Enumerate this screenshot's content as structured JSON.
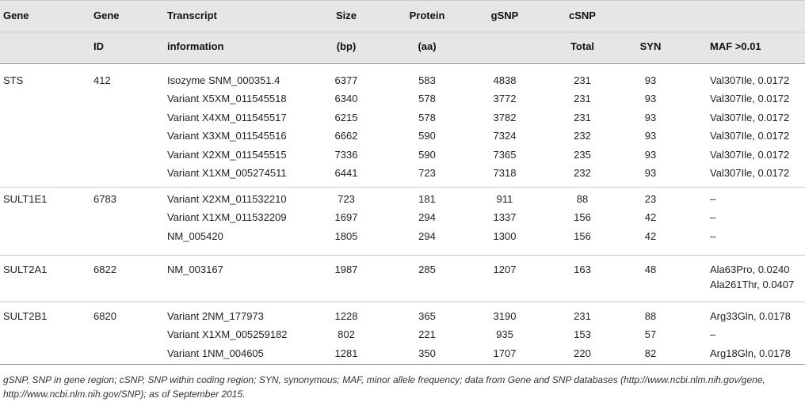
{
  "header": {
    "row1": [
      "Gene",
      "Gene",
      "Transcript",
      "Size",
      "Protein",
      "gSNP",
      "cSNP",
      "",
      ""
    ],
    "row2": [
      "",
      "ID",
      "information",
      "(bp)",
      "(aa)",
      "",
      "Total",
      "SYN",
      "MAF >0.01"
    ]
  },
  "groups": [
    {
      "gene": "STS",
      "id": "412",
      "rows": [
        {
          "transcript": "Isozyme SNM_000351.4",
          "size": "6377",
          "protein": "583",
          "gsnp": "4838",
          "total": "231",
          "syn": "93",
          "maf": [
            "Val307Ile, 0.0172"
          ]
        },
        {
          "transcript": "Variant X5XM_011545518",
          "size": "6340",
          "protein": "578",
          "gsnp": "3772",
          "total": "231",
          "syn": "93",
          "maf": [
            "Val307Ile, 0.0172"
          ]
        },
        {
          "transcript": "Variant X4XM_011545517",
          "size": "6215",
          "protein": "578",
          "gsnp": "3782",
          "total": "231",
          "syn": "93",
          "maf": [
            "Val307Ile, 0.0172"
          ]
        },
        {
          "transcript": "Variant X3XM_011545516",
          "size": "6662",
          "protein": "590",
          "gsnp": "7324",
          "total": "232",
          "syn": "93",
          "maf": [
            "Val307Ile, 0.0172"
          ]
        },
        {
          "transcript": "Variant X2XM_011545515",
          "size": "7336",
          "protein": "590",
          "gsnp": "7365",
          "total": "235",
          "syn": "93",
          "maf": [
            "Val307Ile, 0.0172"
          ]
        },
        {
          "transcript": "Variant X1XM_005274511",
          "size": "6441",
          "protein": "723",
          "gsnp": "7318",
          "total": "232",
          "syn": "93",
          "maf": [
            "Val307Ile, 0.0172"
          ]
        }
      ]
    },
    {
      "gene": "SULT1E1",
      "id": "6783",
      "rows": [
        {
          "transcript": "Variant X2XM_011532210",
          "size": "723",
          "protein": "181",
          "gsnp": "911",
          "total": "88",
          "syn": "23",
          "maf": [
            "–"
          ]
        },
        {
          "transcript": "Variant X1XM_011532209",
          "size": "1697",
          "protein": "294",
          "gsnp": "1337",
          "total": "156",
          "syn": "42",
          "maf": [
            "–"
          ]
        },
        {
          "transcript": "NM_005420",
          "size": "1805",
          "protein": "294",
          "gsnp": "1300",
          "total": "156",
          "syn": "42",
          "maf": [
            "–"
          ]
        }
      ]
    },
    {
      "gene": "SULT2A1",
      "id": "6822",
      "rows": [
        {
          "transcript": "NM_003167",
          "size": "1987",
          "protein": "285",
          "gsnp": "1207",
          "total": "163",
          "syn": "48",
          "maf": [
            "Ala63Pro, 0.0240",
            "Ala261Thr, 0.0407"
          ]
        }
      ]
    },
    {
      "gene": "SULT2B1",
      "id": "6820",
      "rows": [
        {
          "transcript": "Variant 2NM_177973",
          "size": "1228",
          "protein": "365",
          "gsnp": "3190",
          "total": "231",
          "syn": "88",
          "maf": [
            "Arg33Gln, 0.0178"
          ]
        },
        {
          "transcript": "Variant X1XM_005259182",
          "size": "802",
          "protein": "221",
          "gsnp": "935",
          "total": "153",
          "syn": "57",
          "maf": [
            "–"
          ]
        },
        {
          "transcript": "Variant 1NM_004605",
          "size": "1281",
          "protein": "350",
          "gsnp": "1707",
          "total": "220",
          "syn": "82",
          "maf": [
            "Arg18Gln, 0.0178"
          ]
        }
      ]
    }
  ],
  "footnote": "gSNP, SNP in gene region; cSNP, SNP within coding region; SYN, synonymous; MAF, minor allele frequency; data from Gene and SNP databases (http://www.ncbi.nlm.nih.gov/gene, http://www.ncbi.nlm.nih.gov/SNP); as of September 2015."
}
